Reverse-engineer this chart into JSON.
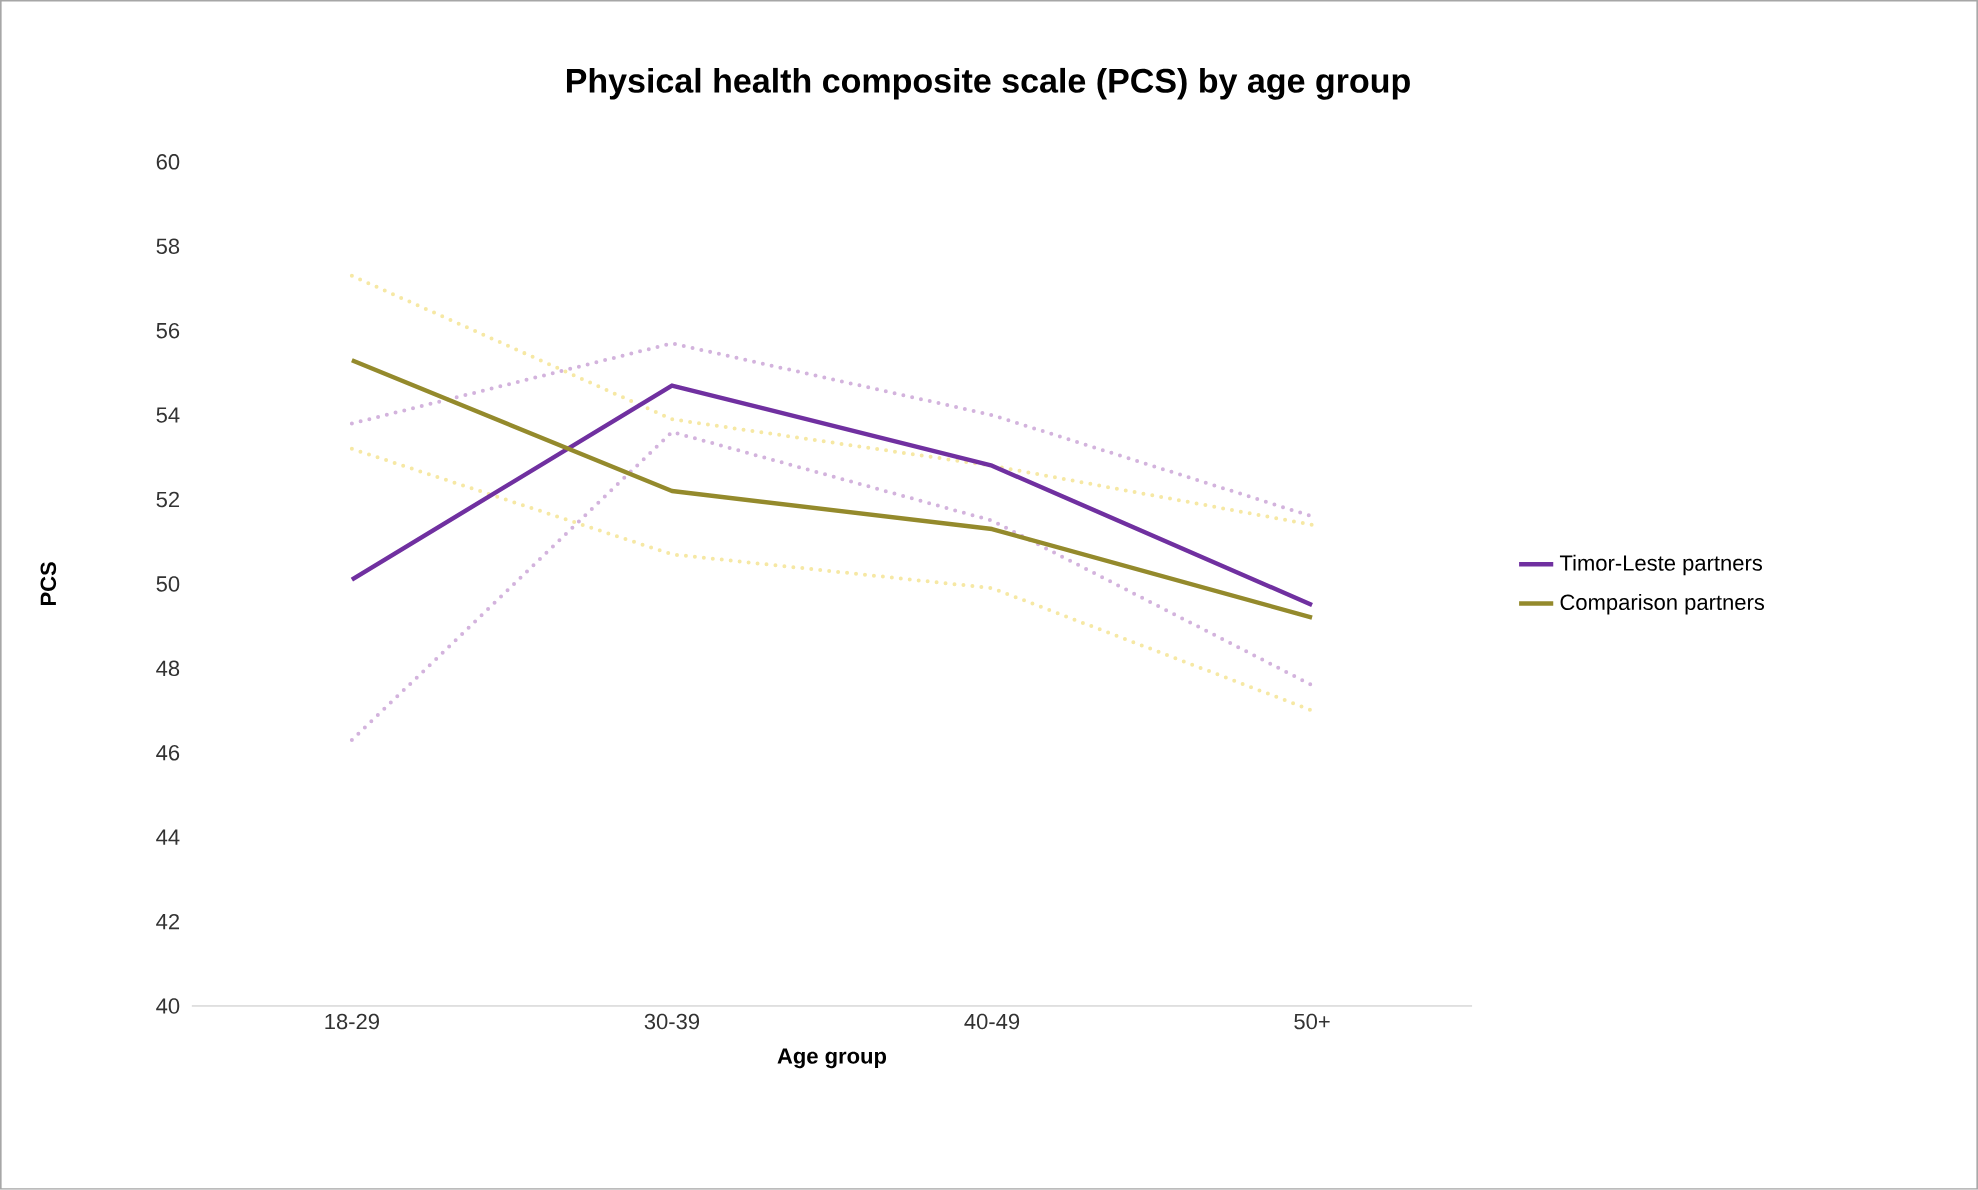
{
  "chart_data": {
    "type": "line",
    "title": "Physical health composite scale (PCS) by age group",
    "xlabel": "Age group",
    "ylabel": "PCS",
    "categories": [
      "18-29",
      "30-39",
      "40-49",
      "50+"
    ],
    "series": [
      {
        "color": "#d3b3dd",
        "values": [
          46.3,
          53.6,
          51.5,
          47.6
        ],
        "line_style": "dotted"
      },
      {
        "color": "#d3b3dd",
        "values": [
          53.8,
          55.7,
          54.0,
          51.6
        ],
        "line_style": "dotted"
      },
      {
        "color": "#f6e8a4",
        "values": [
          53.2,
          50.7,
          49.9,
          47.0
        ],
        "line_style": "dotted"
      },
      {
        "color": "#f6e8a4",
        "values": [
          57.3,
          53.9,
          52.8,
          51.4
        ],
        "line_style": "dotted"
      },
      {
        "name": "Timor-Leste partners",
        "color": "#7030a0",
        "values": [
          50.1,
          54.7,
          52.8,
          49.5
        ]
      },
      {
        "name": "Comparison partners",
        "color": "#948a2c",
        "values": [
          55.3,
          52.2,
          51.3,
          49.2
        ]
      }
    ],
    "ylim": [
      40,
      60
    ],
    "yticks": [
      40,
      42,
      44,
      46,
      48,
      50,
      52,
      54,
      56,
      58,
      60
    ],
    "legend": "right",
    "marker": "none",
    "line_style": "solid",
    "grid": false
  }
}
